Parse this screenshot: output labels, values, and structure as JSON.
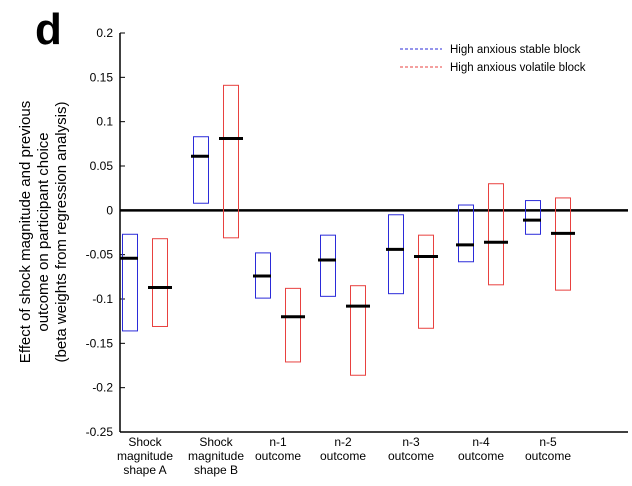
{
  "panel_label": "d",
  "colors": {
    "stable": "#2b2bd9",
    "volatile": "#e8413f",
    "axis": "#000000"
  },
  "chart_data": {
    "type": "box",
    "ylabel": [
      "Effect of shock magnitude and previous",
      "outcome on participant choice",
      "(beta weights from regression analysis)"
    ],
    "xlabel": "",
    "ylim": [
      -0.25,
      0.2
    ],
    "yticks": [
      "0.2",
      "0.15",
      "0.1",
      "0.05",
      "0",
      "-0.05",
      "-0.1",
      "-0.15",
      "-0.2",
      "-0.25"
    ],
    "ytick_values": [
      0.2,
      0.15,
      0.1,
      0.05,
      0,
      -0.05,
      -0.1,
      -0.15,
      -0.2,
      -0.25
    ],
    "categories": [
      [
        "Shock",
        "magnitude",
        "shape A"
      ],
      [
        "Shock",
        "magnitude",
        "shape B"
      ],
      [
        "n-1",
        "outcome"
      ],
      [
        "n-2",
        "outcome"
      ],
      [
        "n-3",
        "outcome"
      ],
      [
        "n-4",
        "outcome"
      ],
      [
        "n-5",
        "outcome"
      ]
    ],
    "series": [
      {
        "name": "High anxious stable block",
        "color": "#2b2bd9",
        "mean": [
          -0.054,
          0.061,
          -0.074,
          -0.056,
          -0.044,
          -0.039,
          -0.011
        ],
        "upper": [
          -0.027,
          0.083,
          -0.048,
          -0.028,
          -0.005,
          0.006,
          0.011
        ],
        "lower": [
          -0.136,
          0.008,
          -0.099,
          -0.097,
          -0.094,
          -0.058,
          -0.027
        ]
      },
      {
        "name": "High anxious volatile block",
        "color": "#e8413f",
        "mean": [
          -0.087,
          0.081,
          -0.12,
          -0.108,
          -0.052,
          -0.036,
          -0.026
        ],
        "upper": [
          -0.032,
          0.141,
          -0.088,
          -0.085,
          -0.028,
          0.03,
          0.014
        ],
        "lower": [
          -0.131,
          -0.031,
          -0.171,
          -0.186,
          -0.133,
          -0.084,
          -0.09
        ]
      }
    ],
    "legend_position": "top-right"
  }
}
